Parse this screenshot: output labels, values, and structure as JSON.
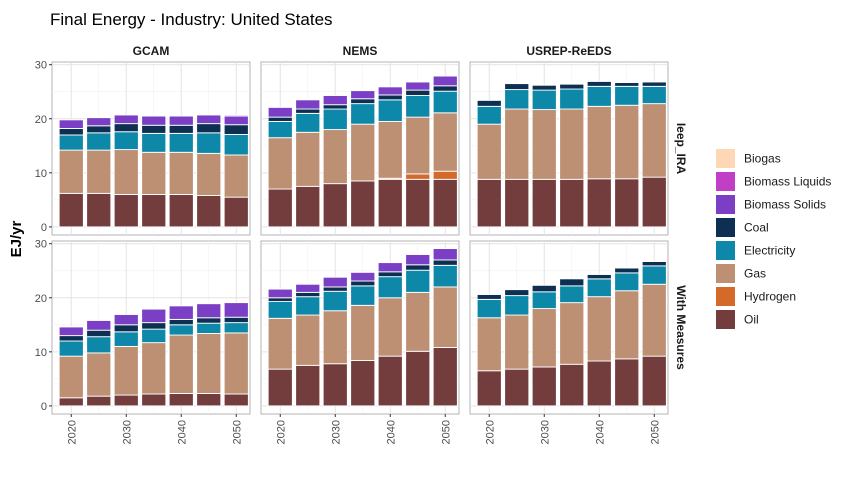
{
  "chart_data": {
    "type": "bar",
    "stacked": true,
    "title": "Final Energy - Industry: United States",
    "ylabel": "EJ/yr",
    "xlabel": "",
    "ylim": [
      -1.5,
      30.5
    ],
    "yticks": [
      0,
      10,
      20,
      30
    ],
    "xticks": [
      2020,
      2030,
      2040,
      2050
    ],
    "xlim": [
      2016.5,
      2052.5
    ],
    "grid": true,
    "legend_position": "right",
    "categories": [
      "Oil",
      "Hydrogen",
      "Gas",
      "Electricity",
      "Coal",
      "Biomass Solids",
      "Biomass Liquids",
      "Biogas"
    ],
    "legend_order": [
      "Biogas",
      "Biomass Liquids",
      "Biomass Solids",
      "Coal",
      "Electricity",
      "Gas",
      "Hydrogen",
      "Oil"
    ],
    "colors": {
      "Oil": "#733d3d",
      "Hydrogen": "#d4692a",
      "Gas": "#bd8f73",
      "Electricity": "#0e88a8",
      "Coal": "#0d2f52",
      "Biomass Solids": "#7b3fc6",
      "Biomass Liquids": "#c03fc6",
      "Biogas": "#fcd9b4"
    },
    "models": [
      "GCAM",
      "NEMS",
      "USREP-ReEDS"
    ],
    "scenarios": [
      "Ieep_IRA",
      "With Measures"
    ],
    "years": [
      2020,
      2025,
      2030,
      2035,
      2040,
      2045,
      2050
    ],
    "panels": [
      {
        "model": "GCAM",
        "scenario": "Ieep_IRA",
        "series": {
          "Oil": [
            6.2,
            6.2,
            6.0,
            6.0,
            6.0,
            5.8,
            5.5
          ],
          "Hydrogen": [
            0,
            0,
            0,
            0,
            0,
            0,
            0
          ],
          "Gas": [
            8.0,
            8.0,
            8.3,
            7.8,
            7.8,
            7.8,
            7.8
          ],
          "Electricity": [
            2.8,
            3.2,
            3.3,
            3.5,
            3.5,
            3.8,
            3.8
          ],
          "Coal": [
            1.2,
            1.3,
            1.5,
            1.5,
            1.5,
            1.7,
            1.8
          ],
          "Biomass Solids": [
            1.6,
            1.5,
            1.6,
            1.7,
            1.7,
            1.6,
            1.6
          ],
          "Biomass Liquids": [
            0,
            0,
            0,
            0,
            0,
            0,
            0.2
          ],
          "Biogas": [
            0,
            0,
            0,
            0,
            0,
            0,
            0
          ]
        }
      },
      {
        "model": "NEMS",
        "scenario": "Ieep_IRA",
        "series": {
          "Oil": [
            7.0,
            7.5,
            8.0,
            8.5,
            8.8,
            8.8,
            8.8
          ],
          "Hydrogen": [
            0,
            0,
            0,
            0,
            0.2,
            1.0,
            1.5
          ],
          "Gas": [
            9.5,
            10.0,
            10.0,
            10.5,
            10.5,
            10.5,
            10.8
          ],
          "Electricity": [
            3.0,
            3.5,
            3.8,
            3.8,
            4.0,
            4.0,
            4.0
          ],
          "Coal": [
            0.8,
            0.8,
            0.8,
            0.9,
            0.9,
            1.0,
            1.0
          ],
          "Biomass Solids": [
            1.8,
            1.7,
            1.7,
            1.5,
            1.5,
            1.5,
            1.8
          ],
          "Biomass Liquids": [
            0,
            0,
            0,
            0,
            0,
            0,
            0
          ],
          "Biogas": [
            0,
            0,
            0,
            0,
            0,
            0,
            0
          ]
        }
      },
      {
        "model": "USREP-ReEDS",
        "scenario": "Ieep_IRA",
        "series": {
          "Oil": [
            8.8,
            8.8,
            8.8,
            8.8,
            8.9,
            8.9,
            9.2
          ],
          "Hydrogen": [
            0,
            0,
            0,
            0,
            0,
            0,
            0
          ],
          "Gas": [
            10.2,
            13.0,
            12.9,
            13.0,
            13.4,
            13.6,
            13.6
          ],
          "Electricity": [
            3.3,
            3.6,
            3.6,
            3.7,
            3.7,
            3.5,
            3.2
          ],
          "Coal": [
            1.1,
            1.1,
            0.9,
            0.9,
            0.9,
            0.7,
            0.8
          ],
          "Biomass Solids": [
            0,
            0,
            0,
            0,
            0,
            0,
            0
          ],
          "Biomass Liquids": [
            0,
            0,
            0,
            0,
            0,
            0,
            0
          ],
          "Biogas": [
            0,
            0,
            0,
            0,
            0,
            0,
            0
          ]
        }
      },
      {
        "model": "GCAM",
        "scenario": "With Measures",
        "series": {
          "Oil": [
            1.5,
            1.8,
            2.0,
            2.2,
            2.3,
            2.3,
            2.2
          ],
          "Hydrogen": [
            0,
            0,
            0,
            0,
            0,
            0,
            0
          ],
          "Gas": [
            7.7,
            8.0,
            9.0,
            9.5,
            10.8,
            11.1,
            11.3
          ],
          "Electricity": [
            2.8,
            3.0,
            2.7,
            2.5,
            1.9,
            1.9,
            1.9
          ],
          "Coal": [
            1.0,
            1.2,
            1.3,
            1.2,
            1.0,
            1.0,
            1.0
          ],
          "Biomass Solids": [
            1.6,
            1.8,
            1.9,
            2.5,
            2.5,
            2.6,
            2.7
          ],
          "Biomass Liquids": [
            0,
            0,
            0,
            0,
            0,
            0,
            0
          ],
          "Biogas": [
            0,
            0,
            0,
            0,
            0,
            0,
            0
          ]
        }
      },
      {
        "model": "NEMS",
        "scenario": "With Measures",
        "series": {
          "Oil": [
            6.8,
            7.5,
            7.8,
            8.4,
            9.2,
            10.1,
            10.8
          ],
          "Hydrogen": [
            0,
            0,
            0,
            0,
            0,
            0,
            0
          ],
          "Gas": [
            9.4,
            9.3,
            9.8,
            10.2,
            10.8,
            10.9,
            11.2
          ],
          "Electricity": [
            3.1,
            3.4,
            3.6,
            3.6,
            3.9,
            4.1,
            4.0
          ],
          "Coal": [
            0.7,
            0.8,
            0.8,
            0.9,
            0.9,
            1.0,
            1.0
          ],
          "Biomass Solids": [
            1.6,
            1.5,
            1.8,
            1.6,
            1.7,
            1.9,
            2.1
          ],
          "Biomass Liquids": [
            0,
            0,
            0,
            0,
            0,
            0,
            0
          ],
          "Biogas": [
            0,
            0,
            0,
            0,
            0,
            0,
            0
          ]
        }
      },
      {
        "model": "USREP-ReEDS",
        "scenario": "With Measures",
        "series": {
          "Oil": [
            6.5,
            6.8,
            7.2,
            7.7,
            8.3,
            8.7,
            9.2
          ],
          "Hydrogen": [
            0,
            0,
            0,
            0,
            0,
            0,
            0
          ],
          "Gas": [
            9.8,
            10.0,
            10.8,
            11.4,
            11.9,
            12.6,
            13.3
          ],
          "Electricity": [
            3.4,
            3.6,
            3.1,
            3.1,
            3.3,
            3.3,
            3.4
          ],
          "Coal": [
            0.9,
            1.1,
            1.2,
            1.3,
            0.8,
            0.9,
            0.8
          ],
          "Biomass Solids": [
            0,
            0,
            0,
            0,
            0,
            0,
            0
          ],
          "Biomass Liquids": [
            0,
            0,
            0,
            0,
            0,
            0,
            0
          ],
          "Biogas": [
            0,
            0,
            0,
            0,
            0,
            0,
            0
          ]
        }
      }
    ]
  }
}
